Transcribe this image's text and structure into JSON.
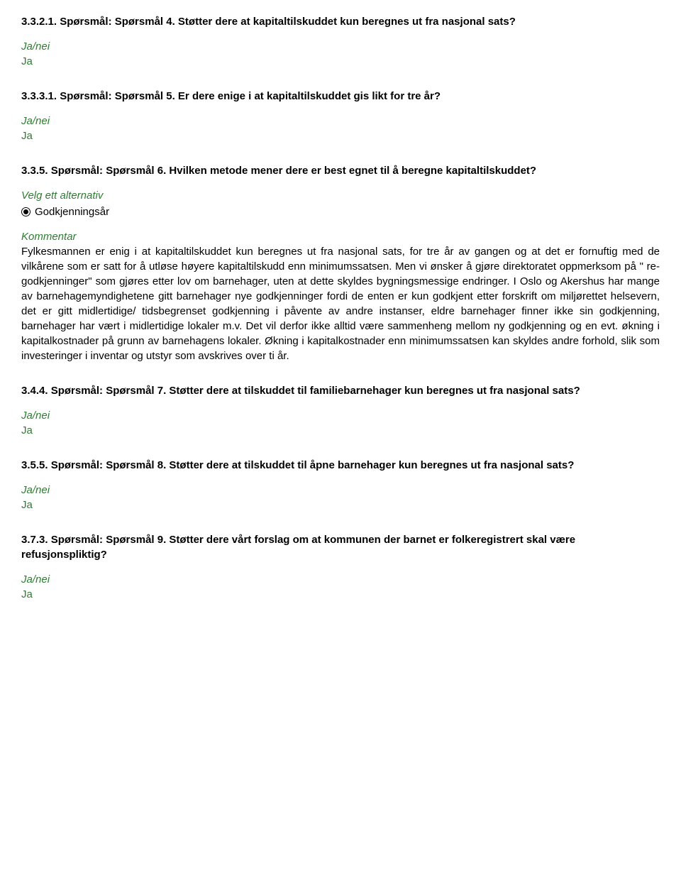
{
  "q1": {
    "heading": "3.3.2.1. Spørsmål: Spørsmål 4. Støtter dere at kapitaltilskuddet kun beregnes ut fra nasjonal sats?",
    "janei_label": "Ja/nei",
    "answer": "Ja"
  },
  "q2": {
    "heading": "3.3.3.1. Spørsmål: Spørsmål 5. Er dere enige i at kapitaltilskuddet gis likt for tre år?",
    "janei_label": "Ja/nei",
    "answer": "Ja"
  },
  "q3": {
    "heading": "3.3.5. Spørsmål: Spørsmål 6. Hvilken metode mener dere er best egnet til å beregne kapitaltilskuddet?",
    "alt_label": "Velg ett alternativ",
    "radio_option": "Godkjenningsår",
    "kommentar_label": "Kommentar",
    "kommentar_body": "Fylkesmannen er enig i at kapitaltilskuddet kun beregnes ut fra nasjonal sats, for tre år av gangen og at det er fornuftig med de vilkårene som er satt for å utløse høyere kapitaltilskudd enn minimumssatsen. Men vi ønsker å gjøre direktoratet oppmerksom på \" re-godkjenninger\" som gjøres etter lov om barnehager, uten at dette skyldes bygningsmessige endringer. I Oslo og Akershus har mange av barnehagemyndighetene gitt barnehager nye godkjenninger fordi de enten er kun godkjent etter forskrift om miljørettet helsevern, det er gitt midlertidige/ tidsbegrenset godkjenning i påvente av andre instanser, eldre barnehager finner ikke sin godkjenning, barnehager har vært i midlertidige lokaler m.v. Det vil derfor ikke alltid være sammenheng mellom ny godkjenning og en evt. økning i kapitalkostnader på grunn av barnehagens lokaler. Økning i kapitalkostnader enn minimumssatsen kan skyldes andre forhold, slik som investeringer i inventar og utstyr som avskrives over ti år."
  },
  "q4": {
    "heading": "3.4.4. Spørsmål: Spørsmål 7. Støtter dere at tilskuddet til familiebarnehager kun beregnes ut fra nasjonal sats?",
    "janei_label": "Ja/nei",
    "answer": "Ja"
  },
  "q5": {
    "heading": "3.5.5. Spørsmål: Spørsmål 8. Støtter dere at tilskuddet til åpne barnehager kun beregnes ut fra nasjonal sats?",
    "janei_label": "Ja/nei",
    "answer": "Ja"
  },
  "q6": {
    "heading": "3.7.3. Spørsmål: Spørsmål 9. Støtter dere vårt forslag om at kommunen der barnet er folkeregistrert skal være refusjonspliktig?",
    "janei_label": "Ja/nei",
    "answer": "Ja"
  }
}
